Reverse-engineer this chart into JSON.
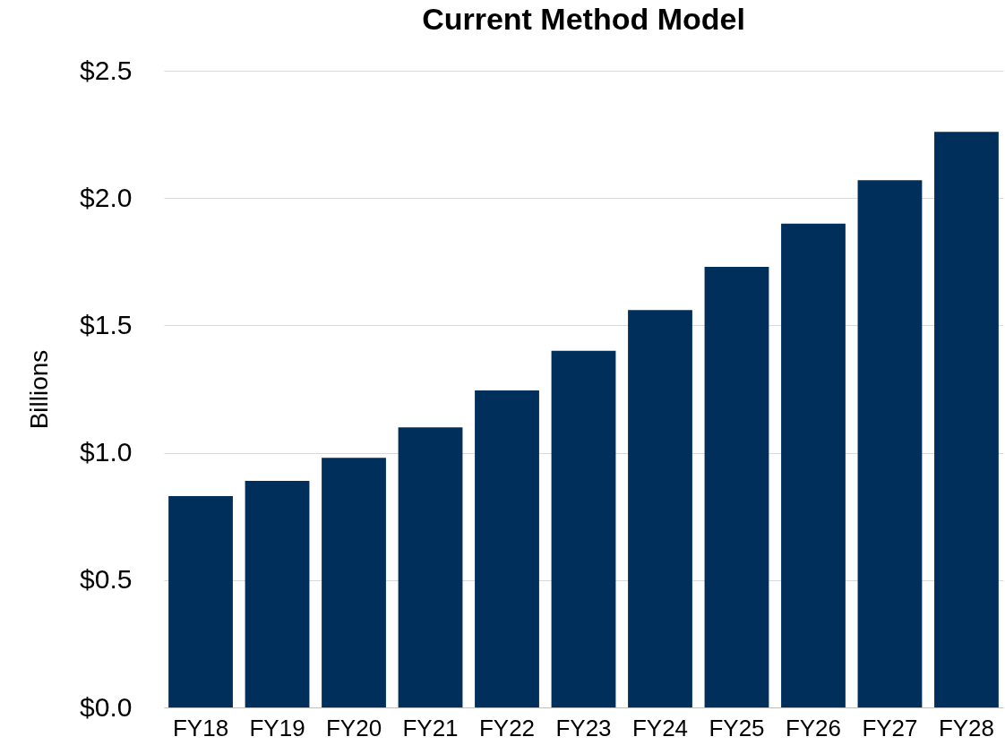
{
  "chart_data": {
    "type": "bar",
    "title": "Current Method Model",
    "ylabel": "Billions",
    "categories": [
      "FY18",
      "FY19",
      "FY20",
      "FY21",
      "FY22",
      "FY23",
      "FY24",
      "FY25",
      "FY26",
      "FY27",
      "FY28"
    ],
    "values": [
      0.83,
      0.89,
      0.98,
      1.1,
      1.245,
      1.4,
      1.56,
      1.73,
      1.9,
      2.07,
      2.26
    ],
    "color": "#002f5b",
    "ylim": [
      0,
      2.5
    ],
    "yticks": [
      {
        "value": 0,
        "label": "$0.0"
      },
      {
        "value": 0.5,
        "label": "$0.5"
      },
      {
        "value": 1,
        "label": "$1.0"
      },
      {
        "value": 1.5,
        "label": "$1.5"
      },
      {
        "value": 2,
        "label": "$2.0"
      },
      {
        "value": 2.5,
        "label": "$2.5"
      }
    ],
    "grid": "y"
  }
}
